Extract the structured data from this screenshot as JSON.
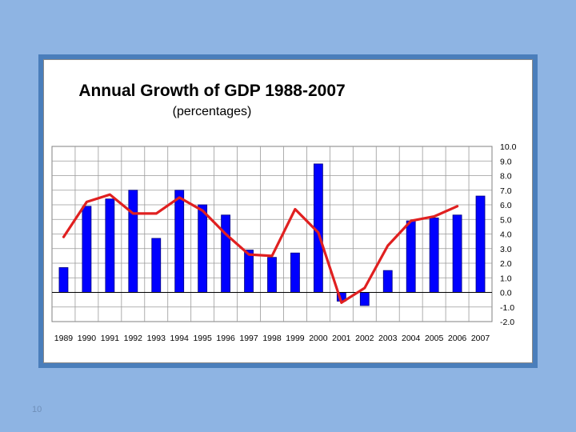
{
  "slide": {
    "number": "10"
  },
  "colors": {
    "background": "#8eb4e3",
    "frame": "#4a7ebb",
    "bar_fill": "#0000ff",
    "bar_stroke": "#000080",
    "line": "#e02020",
    "grid": "#9a9a9a"
  },
  "chart_data": {
    "type": "bar",
    "title": "Annual Growth of GDP 1988-2007",
    "subtitle": "(percentages)",
    "categories": [
      "1989",
      "1990",
      "1991",
      "1992",
      "1993",
      "1994",
      "1995",
      "1996",
      "1997",
      "1998",
      "1999",
      "2000",
      "2001",
      "2002",
      "2003",
      "2004",
      "2005",
      "2006",
      "2007"
    ],
    "y_ticks": [
      "10.0",
      "9.0",
      "8.0",
      "7.0",
      "6.0",
      "5.0",
      "4.0",
      "3.0",
      "2.0",
      "1.0",
      "0.0",
      "-1.0",
      "-2.0"
    ],
    "ylim": [
      -2,
      10
    ],
    "grid": true,
    "y_axis_position": "right",
    "series": [
      {
        "type": "bar",
        "values": [
          1.7,
          5.9,
          6.4,
          7.0,
          3.7,
          7.0,
          6.0,
          5.3,
          2.9,
          2.4,
          2.7,
          8.8,
          -0.6,
          -0.9,
          1.5,
          4.9,
          5.1,
          5.3,
          6.6
        ]
      },
      {
        "type": "line",
        "values": [
          3.8,
          6.2,
          6.7,
          5.4,
          5.4,
          6.5,
          5.6,
          4.0,
          2.6,
          2.5,
          5.7,
          4.1,
          -0.7,
          0.3,
          3.2,
          4.9,
          5.2,
          5.9,
          null
        ]
      }
    ]
  }
}
